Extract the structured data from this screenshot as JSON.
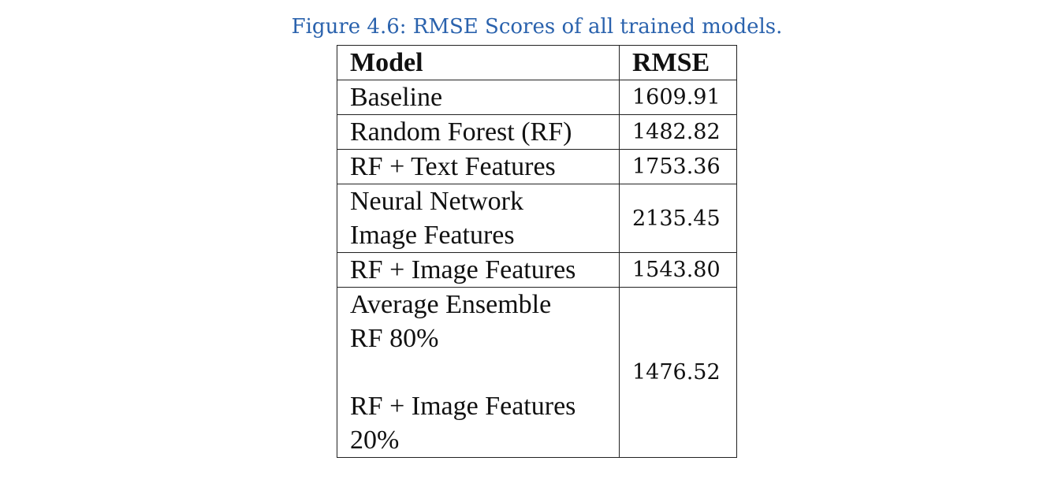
{
  "caption": "Figure 4.6: RMSE Scores of all trained models.",
  "table": {
    "headers": [
      "Model",
      "RMSE"
    ],
    "rows": [
      {
        "model": "Baseline",
        "rmse": "1609.91"
      },
      {
        "model": "Random Forest (RF)",
        "rmse": "1482.82"
      },
      {
        "model": "RF + Text Features",
        "rmse": "1753.36"
      },
      {
        "model_lines": [
          "Neural Network",
          "Image Features"
        ],
        "rmse": "2135.45"
      },
      {
        "model": "RF + Image Features",
        "rmse": "1543.80"
      },
      {
        "model_lines": [
          "Average Ensemble",
          "RF 80%",
          "RF + Image Features",
          "20%"
        ],
        "rmse": "1476.52"
      }
    ]
  }
}
